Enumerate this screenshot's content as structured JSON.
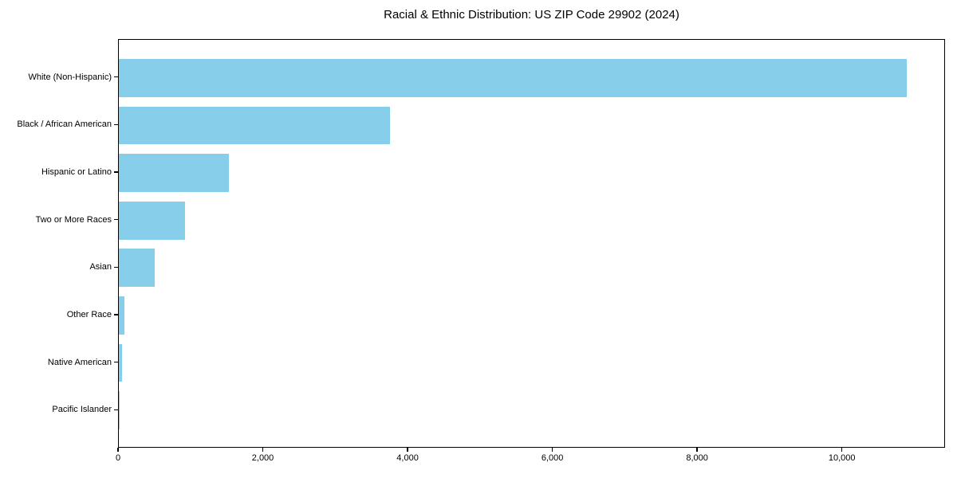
{
  "chart_data": {
    "type": "bar",
    "orientation": "horizontal",
    "title": "Racial & Ethnic Distribution: US ZIP Code 29902 (2024)",
    "xlabel": "",
    "ylabel": "",
    "categories": [
      "White (Non-Hispanic)",
      "Black / African American",
      "Hispanic or Latino",
      "Two or More Races",
      "Asian",
      "Other Race",
      "Native American",
      "Pacific Islander"
    ],
    "values": [
      10881,
      3744,
      1519,
      913,
      495,
      74,
      40,
      6
    ],
    "xlim": [
      0,
      11425
    ],
    "xticks": [
      0,
      2000,
      4000,
      6000,
      8000,
      10000
    ],
    "xtick_labels": [
      "0",
      "2,000",
      "4,000",
      "6,000",
      "8,000",
      "10,000"
    ],
    "bar_color": "#87CEEB",
    "spine_color": "#000000",
    "background_color": "#ffffff",
    "grid": false,
    "legend": null,
    "sort": "descending-top-to-bottom"
  }
}
